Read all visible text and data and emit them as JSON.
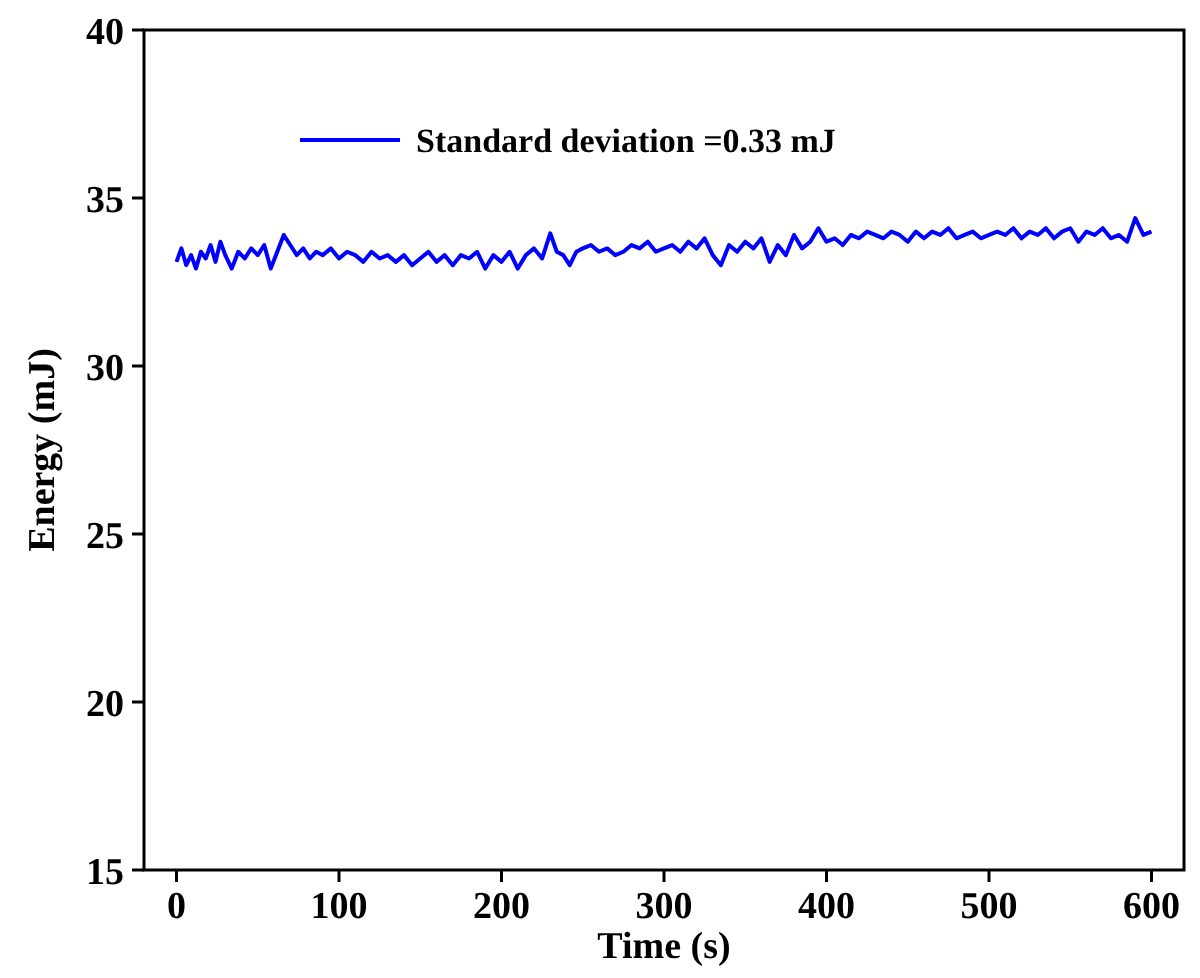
{
  "chart_data": {
    "type": "line",
    "xlabel": "Time (s)",
    "ylabel": "Energy (mJ)",
    "xlim": [
      -20,
      620
    ],
    "ylim": [
      15,
      40
    ],
    "xticks": [
      0,
      100,
      200,
      300,
      400,
      500,
      600
    ],
    "yticks": [
      15,
      20,
      25,
      30,
      35,
      40
    ],
    "legend": "top",
    "grid": false,
    "series": [
      {
        "name": "Standard deviation =0.33 mJ",
        "color": "#0000ff",
        "x": [
          0,
          3,
          6,
          9,
          12,
          15,
          18,
          21,
          24,
          27,
          30,
          34,
          38,
          42,
          46,
          50,
          54,
          58,
          62,
          66,
          70,
          74,
          78,
          82,
          86,
          90,
          95,
          100,
          105,
          110,
          115,
          120,
          125,
          130,
          135,
          140,
          145,
          150,
          155,
          160,
          165,
          170,
          175,
          180,
          185,
          190,
          195,
          200,
          205,
          210,
          215,
          220,
          225,
          230,
          234,
          238,
          242,
          246,
          250,
          255,
          260,
          265,
          270,
          275,
          280,
          285,
          290,
          295,
          300,
          305,
          310,
          315,
          320,
          325,
          330,
          335,
          340,
          345,
          350,
          355,
          360,
          365,
          370,
          375,
          380,
          385,
          390,
          395,
          400,
          405,
          410,
          415,
          420,
          425,
          430,
          435,
          440,
          445,
          450,
          455,
          460,
          465,
          470,
          475,
          480,
          485,
          490,
          495,
          500,
          505,
          510,
          515,
          520,
          525,
          530,
          535,
          540,
          545,
          550,
          555,
          560,
          565,
          570,
          575,
          580,
          585,
          590,
          595,
          600
        ],
        "values": [
          33.1,
          33.5,
          33.0,
          33.3,
          32.9,
          33.4,
          33.2,
          33.6,
          33.1,
          33.7,
          33.3,
          32.9,
          33.4,
          33.2,
          33.5,
          33.3,
          33.6,
          32.9,
          33.4,
          33.9,
          33.6,
          33.3,
          33.5,
          33.2,
          33.4,
          33.3,
          33.5,
          33.2,
          33.4,
          33.3,
          33.1,
          33.4,
          33.2,
          33.3,
          33.1,
          33.3,
          33.0,
          33.2,
          33.4,
          33.1,
          33.3,
          33.0,
          33.3,
          33.2,
          33.4,
          32.9,
          33.3,
          33.1,
          33.4,
          32.9,
          33.3,
          33.5,
          33.2,
          33.95,
          33.4,
          33.3,
          33.0,
          33.4,
          33.5,
          33.6,
          33.4,
          33.5,
          33.3,
          33.4,
          33.6,
          33.5,
          33.7,
          33.4,
          33.5,
          33.6,
          33.4,
          33.7,
          33.5,
          33.8,
          33.3,
          33.0,
          33.6,
          33.4,
          33.7,
          33.5,
          33.8,
          33.1,
          33.6,
          33.3,
          33.9,
          33.5,
          33.7,
          34.1,
          33.7,
          33.8,
          33.6,
          33.9,
          33.8,
          34.0,
          33.9,
          33.8,
          34.0,
          33.9,
          33.7,
          34.0,
          33.8,
          34.0,
          33.9,
          34.1,
          33.8,
          33.9,
          34.0,
          33.8,
          33.9,
          34.0,
          33.9,
          34.1,
          33.8,
          34.0,
          33.9,
          34.1,
          33.8,
          34.0,
          34.1,
          33.7,
          34.0,
          33.9,
          34.1,
          33.8,
          33.9,
          33.7,
          34.4,
          33.9,
          34.0
        ]
      }
    ]
  }
}
